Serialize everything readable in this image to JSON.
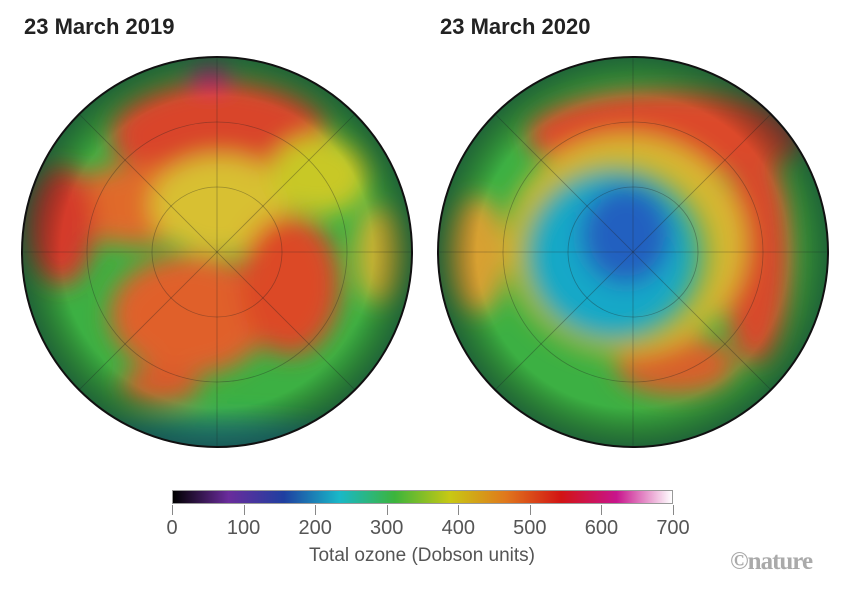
{
  "panels": [
    {
      "title": "23 March 2019"
    },
    {
      "title": "23 March 2020"
    }
  ],
  "colorbar": {
    "label": "Total ozone (Dobson units)",
    "ticks": [
      "0",
      "100",
      "200",
      "300",
      "400",
      "500",
      "600",
      "700"
    ],
    "range": [
      0,
      700
    ],
    "stops": [
      "#000000",
      "#6a2c9c",
      "#1f3fa0",
      "#19b8c8",
      "#3cb43c",
      "#c8c814",
      "#e0781c",
      "#d21414",
      "#c8148c",
      "#ffffff"
    ]
  },
  "credit": "©nature"
}
